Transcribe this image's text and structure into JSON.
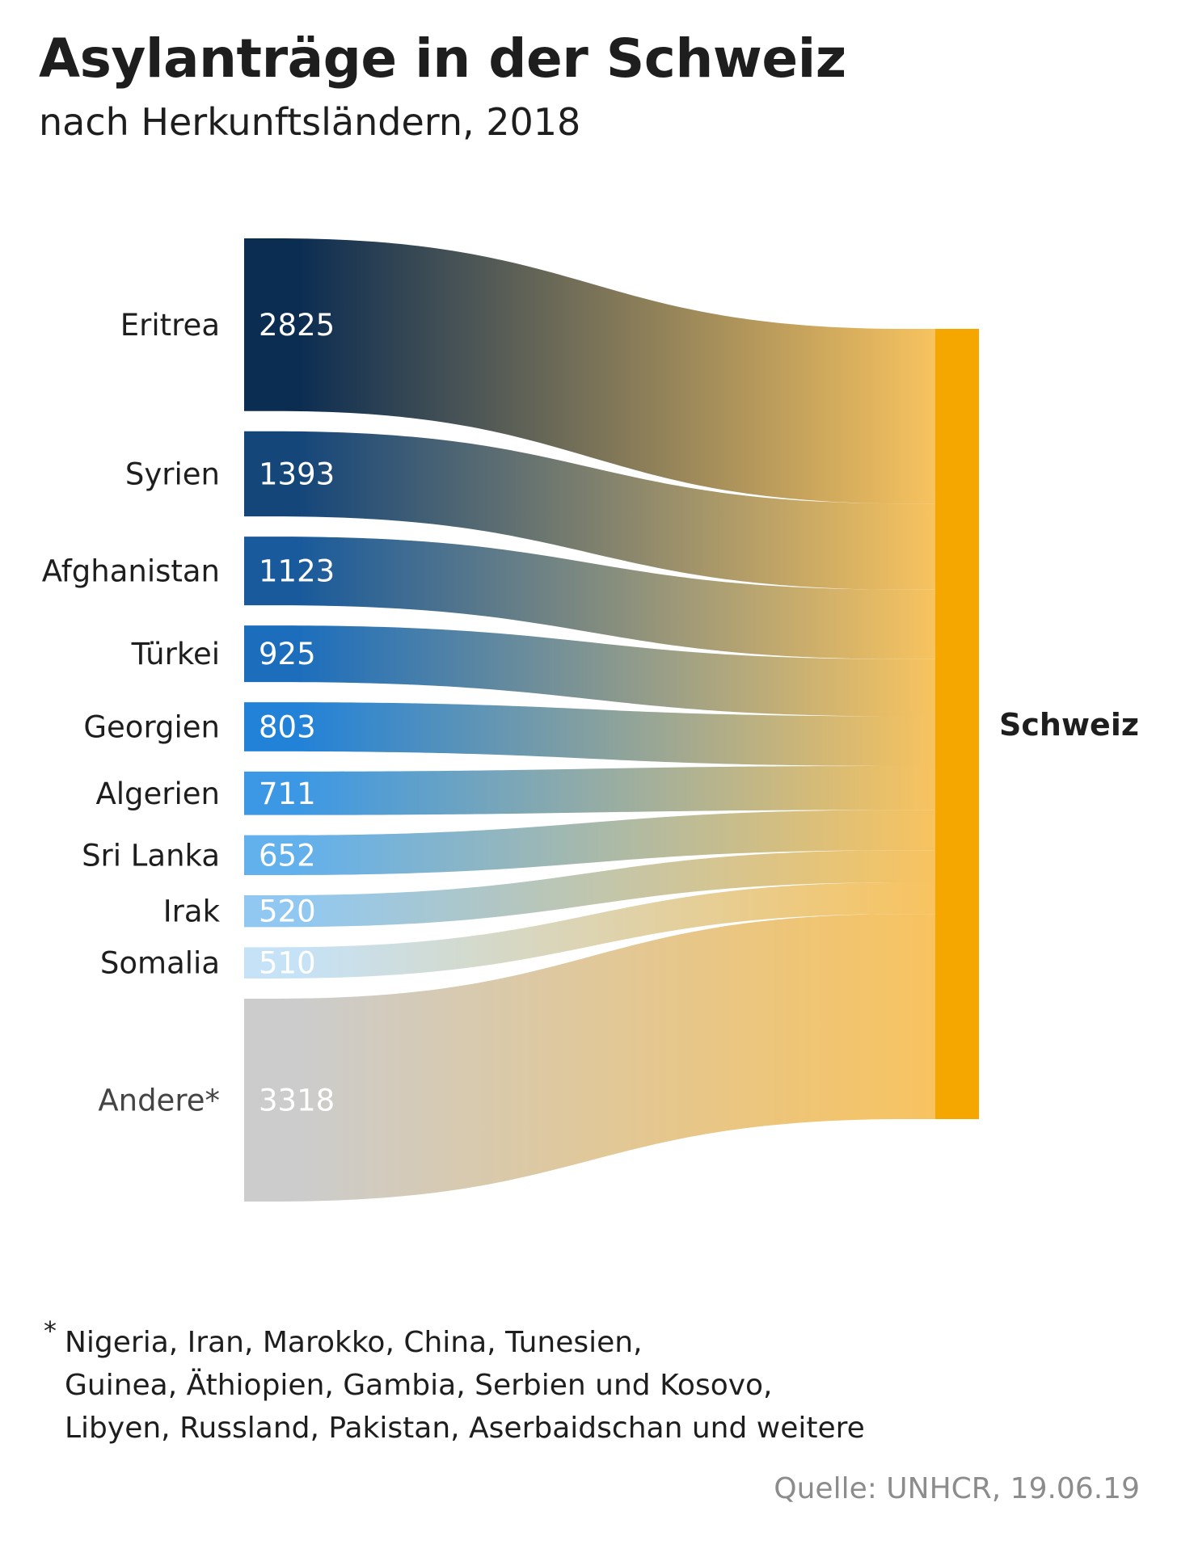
{
  "title": "Asylanträge in der Schweiz",
  "subtitle": "nach Herkunftsländern, 2018",
  "chart_data": {
    "type": "sankey",
    "target": "Schweiz",
    "flows": [
      {
        "name": "Eritrea",
        "value": 2825,
        "value_label": "2825",
        "color": "#0c2d52"
      },
      {
        "name": "Syrien",
        "value": 1393,
        "value_label": "1393",
        "color": "#15467a"
      },
      {
        "name": "Afghanistan",
        "value": 1123,
        "value_label": "1123",
        "color": "#195a9c"
      },
      {
        "name": "Türkei",
        "value": 925,
        "value_label": "925",
        "color": "#1c6ebd"
      },
      {
        "name": "Georgien",
        "value": 803,
        "value_label": "803",
        "color": "#2282d8"
      },
      {
        "name": "Algerien",
        "value": 711,
        "value_label": "711",
        "color": "#3c98e4"
      },
      {
        "name": "Sri Lanka",
        "value": 652,
        "value_label": "652",
        "color": "#62b0ec"
      },
      {
        "name": "Irak",
        "value": 520,
        "value_label": "520",
        "color": "#91c8f1"
      },
      {
        "name": "Somalia",
        "value": 510,
        "value_label": "510",
        "color": "#c6e2f6"
      },
      {
        "name": "Andere*",
        "value": 3318,
        "value_label": "3318",
        "color": "#cccccc"
      }
    ],
    "target_color": "#f5a700",
    "flow_end_color": "#f8c35f"
  },
  "footnote": {
    "marker": "*",
    "lines": [
      "Nigeria, Iran, Marokko, China, Tunesien,",
      "Guinea, Äthiopien, Gambia, Serbien und Kosovo,",
      "Libyen, Russland, Pakistan, Aserbaidschan und weitere"
    ]
  },
  "source": "Quelle: UNHCR, 19.06.19"
}
